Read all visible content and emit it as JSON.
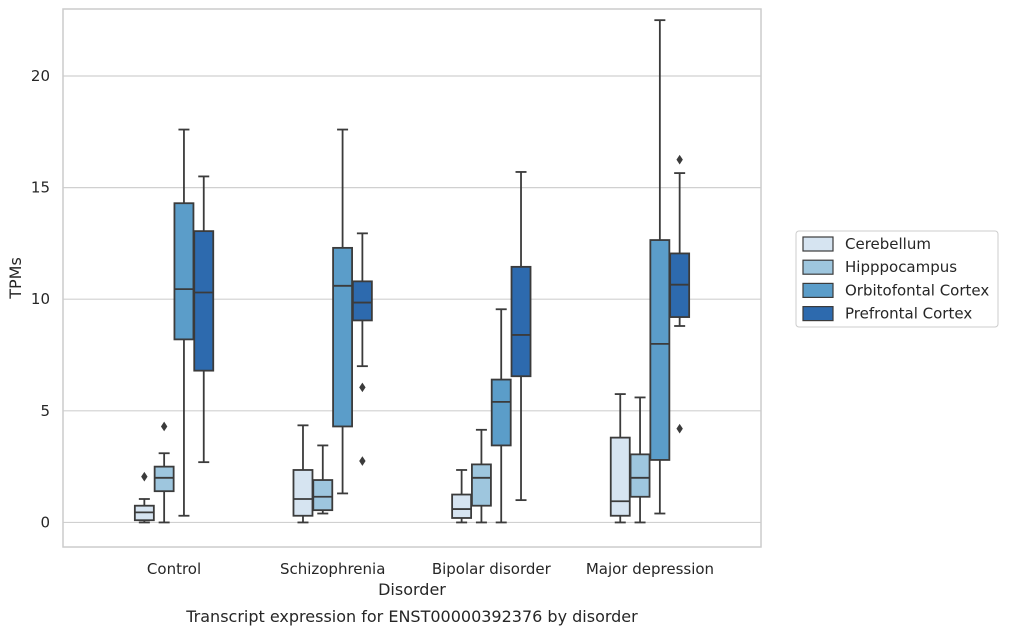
{
  "chart_data": {
    "type": "box",
    "caption": "Transcript expression for ENST00000392376 by disorder",
    "xlabel": "Disorder",
    "ylabel": "TPMs",
    "ylim": [
      -1.1,
      23.0
    ],
    "yticks": [
      0,
      5,
      10,
      15,
      20
    ],
    "grid": "horizontal",
    "legend_position": "right",
    "categories": [
      "Control",
      "Schizophrenia",
      "Bipolar disorder",
      "Major depression"
    ],
    "series": [
      {
        "name": "Cerebellum",
        "color": "#d6e4f1",
        "boxes": [
          {
            "whislo": 0.0,
            "q1": 0.1,
            "med": 0.45,
            "q3": 0.75,
            "whishi": 1.05,
            "fliers": [
              2.05
            ]
          },
          {
            "whislo": 0.0,
            "q1": 0.3,
            "med": 1.05,
            "q3": 2.35,
            "whishi": 4.35,
            "fliers": []
          },
          {
            "whislo": 0.0,
            "q1": 0.2,
            "med": 0.6,
            "q3": 1.25,
            "whishi": 2.35,
            "fliers": []
          },
          {
            "whislo": 0.0,
            "q1": 0.3,
            "med": 0.95,
            "q3": 3.8,
            "whishi": 5.75,
            "fliers": []
          }
        ]
      },
      {
        "name": "Hipppocampus",
        "color": "#9ec6de",
        "boxes": [
          {
            "whislo": 0.0,
            "q1": 1.4,
            "med": 2.0,
            "q3": 2.5,
            "whishi": 3.1,
            "fliers": [
              4.3
            ]
          },
          {
            "whislo": 0.4,
            "q1": 0.55,
            "med": 1.15,
            "q3": 1.9,
            "whishi": 3.45,
            "fliers": []
          },
          {
            "whislo": 0.0,
            "q1": 0.75,
            "med": 2.0,
            "q3": 2.6,
            "whishi": 4.15,
            "fliers": []
          },
          {
            "whislo": 0.0,
            "q1": 1.15,
            "med": 2.0,
            "q3": 3.05,
            "whishi": 5.6,
            "fliers": []
          }
        ]
      },
      {
        "name": "Orbitofontal Cortex",
        "color": "#5b9dc9",
        "boxes": [
          {
            "whislo": 0.3,
            "q1": 8.2,
            "med": 10.45,
            "q3": 14.3,
            "whishi": 17.6,
            "fliers": []
          },
          {
            "whislo": 1.3,
            "q1": 4.3,
            "med": 10.6,
            "q3": 12.3,
            "whishi": 17.6,
            "fliers": []
          },
          {
            "whislo": 0.0,
            "q1": 3.45,
            "med": 5.4,
            "q3": 6.4,
            "whishi": 9.55,
            "fliers": []
          },
          {
            "whislo": 0.4,
            "q1": 2.8,
            "med": 8.0,
            "q3": 12.65,
            "whishi": 22.5,
            "fliers": []
          }
        ]
      },
      {
        "name": "Prefrontal Cortex",
        "color": "#2d6aae",
        "boxes": [
          {
            "whislo": 2.7,
            "q1": 6.8,
            "med": 10.3,
            "q3": 13.05,
            "whishi": 15.5,
            "fliers": []
          },
          {
            "whislo": 7.0,
            "q1": 9.05,
            "med": 9.85,
            "q3": 10.8,
            "whishi": 12.95,
            "fliers": [
              6.05,
              2.75
            ]
          },
          {
            "whislo": 1.0,
            "q1": 6.55,
            "med": 8.4,
            "q3": 11.45,
            "whishi": 15.7,
            "fliers": []
          },
          {
            "whislo": 8.8,
            "q1": 9.2,
            "med": 10.65,
            "q3": 12.05,
            "whishi": 15.65,
            "fliers": [
              16.25,
              4.2
            ]
          }
        ]
      }
    ]
  }
}
